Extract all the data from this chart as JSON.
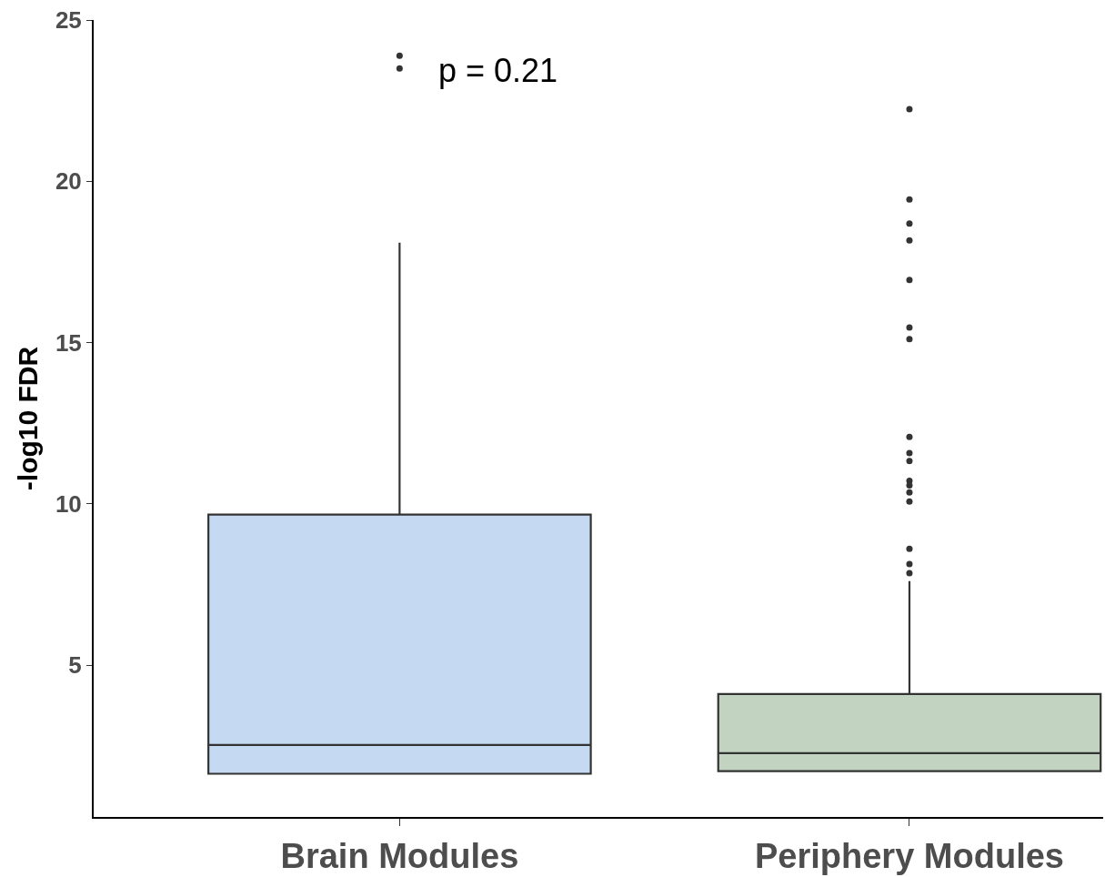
{
  "chart_data": {
    "type": "box",
    "ylabel": "-log10 FDR",
    "categories": [
      "Brain Modules",
      "Periphery Modules"
    ],
    "series": [
      {
        "colors": [
          "#c5d9f2",
          "#c2d3c2"
        ],
        "boxes": [
          {
            "low": 1.64,
            "q1": 1.64,
            "median": 2.53,
            "q3": 9.67,
            "high": 18.1,
            "outliers": [
              23.89,
              23.5
            ]
          },
          {
            "low": 1.72,
            "q1": 1.72,
            "median": 2.28,
            "q3": 4.11,
            "high": 7.61,
            "outliers": [
              22.24,
              19.44,
              18.69,
              18.17,
              16.94,
              15.47,
              15.11,
              12.08,
              11.58,
              11.33,
              10.72,
              10.58,
              10.36,
              10.08,
              8.61,
              8.14,
              7.86
            ]
          }
        ]
      }
    ],
    "ylim": [
      0.3,
      25
    ],
    "yticks": [
      5,
      10,
      15,
      20,
      25
    ],
    "marker": "circle",
    "annotations": [
      "p = 0.21"
    ]
  }
}
